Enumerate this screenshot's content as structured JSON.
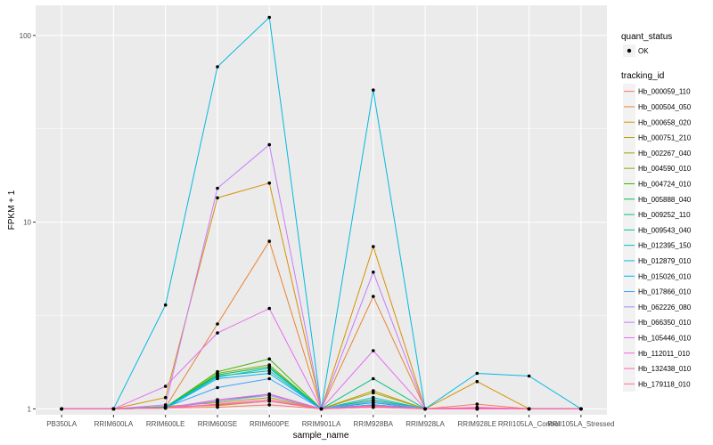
{
  "chart_data": {
    "type": "line",
    "xlabel": "sample_name",
    "ylabel": "FPKM + 1",
    "y_scale": "log10",
    "ylim": [
      0.93,
      145
    ],
    "y_ticks": [
      1,
      10,
      100
    ],
    "y_tick_labels": [
      "1",
      "10",
      "100"
    ],
    "categories": [
      "PB350LA",
      "RRIM600LA",
      "RRIM600LE",
      "RRIM600SE",
      "RRIM600PE",
      "RRIM901LA",
      "RRIM928BA",
      "RRIM928LA",
      "RRIM928LE",
      "RRII105LA_Control",
      "RRII105LA_Stressed"
    ],
    "legend_quant": {
      "title": "quant_status",
      "items": [
        "OK"
      ]
    },
    "legend_title": "tracking_id",
    "legend_position": "right",
    "grid": true,
    "point_color": "#000000",
    "series": [
      {
        "name": "Hb_000059_110",
        "color": "#F8766D",
        "values": [
          1,
          1,
          1.01,
          1.02,
          1.05,
          1,
          1.03,
          1,
          1.06,
          1,
          1
        ]
      },
      {
        "name": "Hb_000504_050",
        "color": "#EA8331",
        "values": [
          1,
          1,
          1.02,
          2.85,
          7.9,
          1,
          4.0,
          1,
          1.01,
          1,
          1
        ]
      },
      {
        "name": "Hb_000658_020",
        "color": "#D89000",
        "values": [
          1,
          1,
          1.15,
          13.5,
          16.2,
          1,
          7.4,
          1,
          1.4,
          1,
          1
        ]
      },
      {
        "name": "Hb_000751_210",
        "color": "#C09B00",
        "values": [
          1,
          1,
          1.03,
          1.04,
          1.1,
          1,
          1.25,
          1,
          1,
          1,
          1
        ]
      },
      {
        "name": "Hb_002267_040",
        "color": "#A3A500",
        "values": [
          1,
          1,
          1.03,
          1.08,
          1.15,
          1,
          1.22,
          1,
          1,
          1,
          1
        ]
      },
      {
        "name": "Hb_004590_010",
        "color": "#7CAE00",
        "values": [
          1,
          1,
          1.01,
          1.55,
          1.72,
          1,
          1.08,
          1,
          1,
          1,
          1
        ]
      },
      {
        "name": "Hb_004724_010",
        "color": "#39B600",
        "values": [
          1,
          1,
          1.02,
          1.58,
          1.85,
          1,
          1.05,
          1,
          1,
          1,
          1
        ]
      },
      {
        "name": "Hb_005888_040",
        "color": "#00BB4E",
        "values": [
          1,
          1,
          1.02,
          1.52,
          1.68,
          1,
          1.12,
          1,
          1,
          1,
          1
        ]
      },
      {
        "name": "Hb_009252_110",
        "color": "#00BF7D",
        "values": [
          1,
          1,
          1.01,
          1.1,
          1.2,
          1,
          1.45,
          1,
          1,
          1,
          1
        ]
      },
      {
        "name": "Hb_009543_040",
        "color": "#00C1A3",
        "values": [
          1,
          1,
          1.02,
          1.5,
          1.6,
          1,
          1.05,
          1,
          1,
          1,
          1
        ]
      },
      {
        "name": "Hb_012395_150",
        "color": "#00BFC4",
        "values": [
          1,
          1,
          1.01,
          1.48,
          1.65,
          1,
          1.15,
          1,
          1,
          1,
          1
        ]
      },
      {
        "name": "Hb_012879_010",
        "color": "#00BAE0",
        "values": [
          1,
          1,
          3.6,
          68,
          125,
          1,
          51,
          1,
          1.55,
          1.5,
          1
        ]
      },
      {
        "name": "Hb_015026_010",
        "color": "#00B0F6",
        "values": [
          1,
          1,
          1.01,
          1.45,
          1.55,
          1,
          1.08,
          1,
          1,
          1,
          1
        ]
      },
      {
        "name": "Hb_017866_010",
        "color": "#35A2FF",
        "values": [
          1,
          1,
          1.02,
          1.3,
          1.45,
          1,
          1.05,
          1,
          1,
          1,
          1
        ]
      },
      {
        "name": "Hb_062226_080",
        "color": "#9590FF",
        "values": [
          1,
          1,
          1.01,
          1.1,
          1.18,
          1,
          1.1,
          1,
          1,
          1,
          1
        ]
      },
      {
        "name": "Hb_066350_010",
        "color": "#C77CFF",
        "values": [
          1,
          1,
          1.05,
          15.2,
          26,
          1,
          5.4,
          1,
          1,
          1,
          1
        ]
      },
      {
        "name": "Hb_105446_010",
        "color": "#E76BF3",
        "values": [
          1,
          1,
          1.32,
          2.55,
          3.45,
          1,
          2.05,
          1,
          1,
          1,
          1
        ]
      },
      {
        "name": "Hb_112011_010",
        "color": "#FA62DB",
        "values": [
          1,
          1,
          1.01,
          1.12,
          1.2,
          1,
          1.02,
          1,
          1,
          1,
          1
        ]
      },
      {
        "name": "Hb_132438_010",
        "color": "#FF62BC",
        "values": [
          1,
          1,
          1.01,
          1.06,
          1.12,
          1,
          1.04,
          1,
          1.02,
          1,
          1
        ]
      },
      {
        "name": "Hb_179118_010",
        "color": "#FF6C91",
        "values": [
          1,
          1,
          1.01,
          1.05,
          1.1,
          1,
          1.02,
          1,
          1.01,
          1,
          1
        ]
      }
    ]
  }
}
